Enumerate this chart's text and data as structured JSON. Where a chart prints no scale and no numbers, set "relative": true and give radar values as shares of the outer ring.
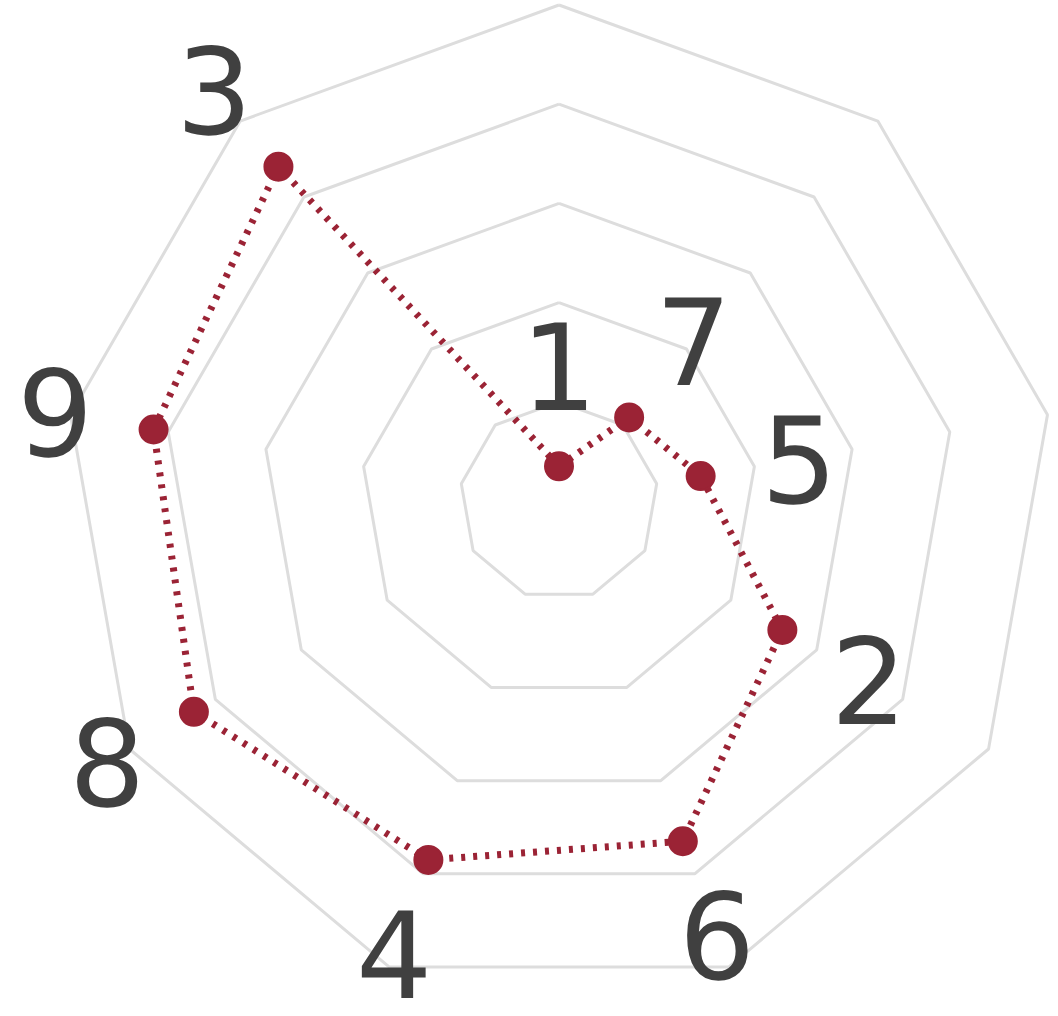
{
  "chart_data": {
    "type": "radar",
    "relative": true,
    "categories": [
      "1",
      "7",
      "5",
      "2",
      "6",
      "4",
      "8",
      "9",
      "3"
    ],
    "series": [
      {
        "color": "#9b2335",
        "values": [
          0.07,
          0.22,
          0.29,
          0.52,
          0.73,
          0.77,
          0.85,
          0.83,
          0.88
        ]
      }
    ],
    "marker": "circle",
    "line_style": "dotted",
    "grid": true
  }
}
